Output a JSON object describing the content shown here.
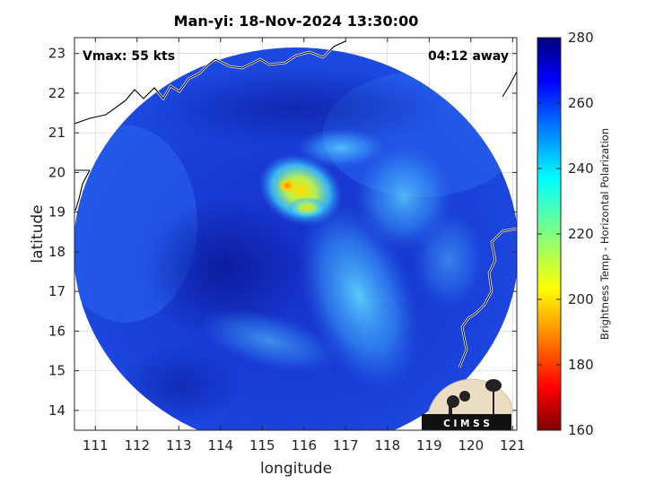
{
  "title": "Man-yi: 18-Nov-2024 13:30:00",
  "annotations": {
    "vmax": "Vmax: 55 kts",
    "time_away": "04:12 away"
  },
  "axes": {
    "xlabel": "longitude",
    "ylabel": "latitude",
    "xlim": [
      110.5,
      121.1
    ],
    "ylim": [
      13.5,
      23.4
    ],
    "xticks": [
      "111",
      "112",
      "113",
      "114",
      "115",
      "116",
      "117",
      "118",
      "119",
      "120",
      "121"
    ],
    "yticks": [
      "14",
      "15",
      "16",
      "17",
      "18",
      "19",
      "20",
      "21",
      "22",
      "23"
    ]
  },
  "colorbar": {
    "label": "Brightness Temp - Horizontal Polarization",
    "range": [
      160,
      280
    ],
    "ticks": [
      "160",
      "180",
      "200",
      "220",
      "240",
      "260",
      "280"
    ],
    "colormap": "jet"
  },
  "logo": {
    "text": "C I M S S"
  },
  "storm": {
    "center_lon": 115.9,
    "center_lat": 19.4
  }
}
